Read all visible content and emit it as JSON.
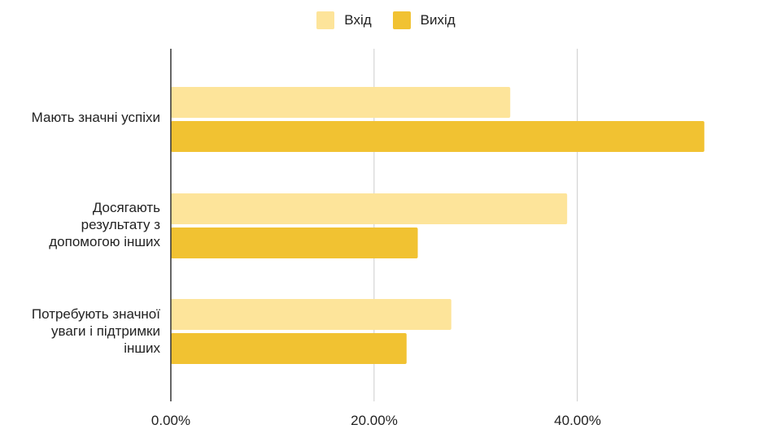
{
  "chart_data": {
    "type": "bar",
    "orientation": "horizontal",
    "categories": [
      "Мають значні успіхи",
      "Досягають результату з допомогою інших",
      "Потребують значної уваги і підтримки інших"
    ],
    "category_lines": [
      [
        "Мають значні успіхи"
      ],
      [
        "Досягають",
        "результату з",
        "допомогою інших"
      ],
      [
        "Потребують значної",
        "уваги і підтримки",
        "інших"
      ]
    ],
    "series": [
      {
        "name": "Вхід",
        "values": [
          33.4,
          39.0,
          27.6
        ],
        "color": "#fde49a"
      },
      {
        "name": "Вихід",
        "values": [
          52.5,
          24.3,
          23.2
        ],
        "color": "#f1c232"
      }
    ],
    "xlim": [
      0,
      59.4
    ],
    "xticks": [
      0,
      20,
      40
    ],
    "xtick_labels": [
      "0.00%",
      "20.00%",
      "40.00%"
    ],
    "grid": true,
    "legend": "top-center",
    "title": "",
    "xlabel": "",
    "ylabel": ""
  }
}
